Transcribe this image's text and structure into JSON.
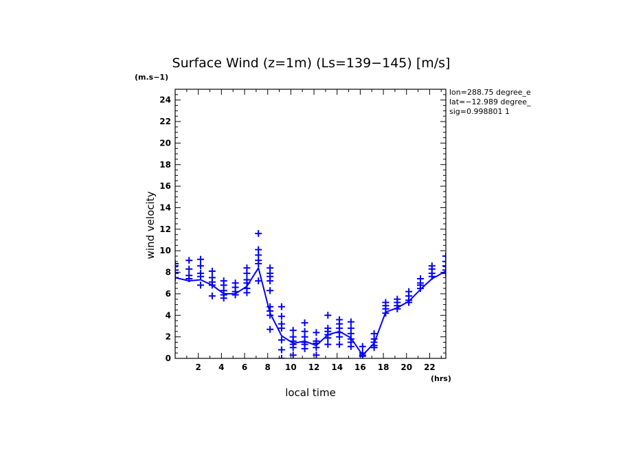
{
  "chart_data": {
    "type": "line",
    "title": "Surface Wind (z=1m) (Ls=139−145) [m/s]",
    "y_unit_label": "(m.s−1)",
    "x_unit_label": "(hrs)",
    "xlabel": "local time",
    "ylabel": "wind velocity",
    "xlim": [
      0,
      23.4
    ],
    "ylim": [
      0,
      25
    ],
    "x_ticks": [
      2,
      4,
      6,
      8,
      10,
      12,
      14,
      16,
      18,
      20,
      22
    ],
    "y_ticks": [
      0,
      2,
      4,
      6,
      8,
      10,
      12,
      14,
      16,
      18,
      20,
      22,
      24
    ],
    "x_tick_labels": [
      "2",
      "4",
      "6",
      "8",
      "10",
      "12",
      "14",
      "16",
      "18",
      "20",
      "22"
    ],
    "y_tick_labels": [
      "0",
      "2",
      "4",
      "6",
      "8",
      "10",
      "12",
      "14",
      "16",
      "18",
      "20",
      "22",
      "24"
    ],
    "grid": false,
    "info_lines": [
      "lon=288.75 degree_e",
      "lat=−12.989 degree_",
      "sig=0.998801 1"
    ],
    "series": [
      {
        "style": "line",
        "color": "#0000ff",
        "x": [
          0,
          1.2,
          2.2,
          3.2,
          4.2,
          5.2,
          6.2,
          7.2,
          8.2,
          9.2,
          10.2,
          11.2,
          12.2,
          13.2,
          14.2,
          15.2,
          16.2,
          17.2,
          18.2,
          19.2,
          20.2,
          21.2,
          22.2,
          23.4
        ],
        "y": [
          7.5,
          7.2,
          7.3,
          6.8,
          6.0,
          6.0,
          6.7,
          8.4,
          4.2,
          2.1,
          1.4,
          1.6,
          1.2,
          2.2,
          2.5,
          1.9,
          0.3,
          1.4,
          4.3,
          4.7,
          5.3,
          6.4,
          7.4,
          8.1
        ]
      },
      {
        "style": "scatter",
        "marker": "+",
        "color": "#0000ff",
        "x": [
          0,
          0,
          0,
          0,
          0,
          1.2,
          1.2,
          1.2,
          1.2,
          2.2,
          2.2,
          2.2,
          2.2,
          2.2,
          3.2,
          3.2,
          3.2,
          3.2,
          3.2,
          4.2,
          4.2,
          4.2,
          4.2,
          4.2,
          5.2,
          5.2,
          5.2,
          5.2,
          6.2,
          6.2,
          6.2,
          6.2,
          6.2,
          6.2,
          7.2,
          7.2,
          7.2,
          7.2,
          7.2,
          7.2,
          8.2,
          8.2,
          8.2,
          8.2,
          8.2,
          8.2,
          8.2,
          8.2,
          8.2,
          9.2,
          9.2,
          9.2,
          9.2,
          9.2,
          9.2,
          9.2,
          10.2,
          10.2,
          10.2,
          10.2,
          10.2,
          10.2,
          11.2,
          11.2,
          11.2,
          11.2,
          11.2,
          11.2,
          12.2,
          12.2,
          12.2,
          12.2,
          12.2,
          13.2,
          13.2,
          13.2,
          13.2,
          13.2,
          13.2,
          14.2,
          14.2,
          14.2,
          14.2,
          14.2,
          14.2,
          15.2,
          15.2,
          15.2,
          15.2,
          15.2,
          15.2,
          16.2,
          16.2,
          16.2,
          16.2,
          17.2,
          17.2,
          17.2,
          17.2,
          17.2,
          18.2,
          18.2,
          18.2,
          18.2,
          19.2,
          19.2,
          19.2,
          19.2,
          20.2,
          20.2,
          20.2,
          20.2,
          21.2,
          21.2,
          21.2,
          21.2,
          22.2,
          22.2,
          22.2,
          22.2,
          23.4,
          23.4,
          23.4,
          23.4,
          23.4
        ],
        "y": [
          8.8,
          8.6,
          8.2,
          7.9,
          7.5,
          9.1,
          8.3,
          7.7,
          7.4,
          9.2,
          8.6,
          7.9,
          7.6,
          6.8,
          8.1,
          7.5,
          7.1,
          6.8,
          5.8,
          7.2,
          6.8,
          6.3,
          5.9,
          5.6,
          7.0,
          6.6,
          6.2,
          5.9,
          8.4,
          7.9,
          7.3,
          7.0,
          6.5,
          6.1,
          11.6,
          10.1,
          9.6,
          9.1,
          8.8,
          7.2,
          8.4,
          7.9,
          7.6,
          7.2,
          6.3,
          4.8,
          4.4,
          4.0,
          2.7,
          4.8,
          3.9,
          3.2,
          2.8,
          1.7,
          0.8,
          0.0,
          2.6,
          2.0,
          1.6,
          1.3,
          1.0,
          0.3,
          3.3,
          2.5,
          2.0,
          1.5,
          1.3,
          0.9,
          2.4,
          1.6,
          1.4,
          1.0,
          0.3,
          4.0,
          2.8,
          2.5,
          2.2,
          1.9,
          1.3,
          3.6,
          3.2,
          2.8,
          2.4,
          2.0,
          1.3,
          3.4,
          2.8,
          2.3,
          1.8,
          1.5,
          1.1,
          1.1,
          0.5,
          0.3,
          0.2,
          2.3,
          1.8,
          1.5,
          1.2,
          1.0,
          5.2,
          4.9,
          4.6,
          4.2,
          5.5,
          5.2,
          4.9,
          4.6,
          6.2,
          5.8,
          5.4,
          5.2,
          7.4,
          7.0,
          6.8,
          6.5,
          8.6,
          8.3,
          7.9,
          7.6,
          9.5,
          9.0,
          8.6,
          8.2,
          7.9
        ]
      }
    ]
  }
}
